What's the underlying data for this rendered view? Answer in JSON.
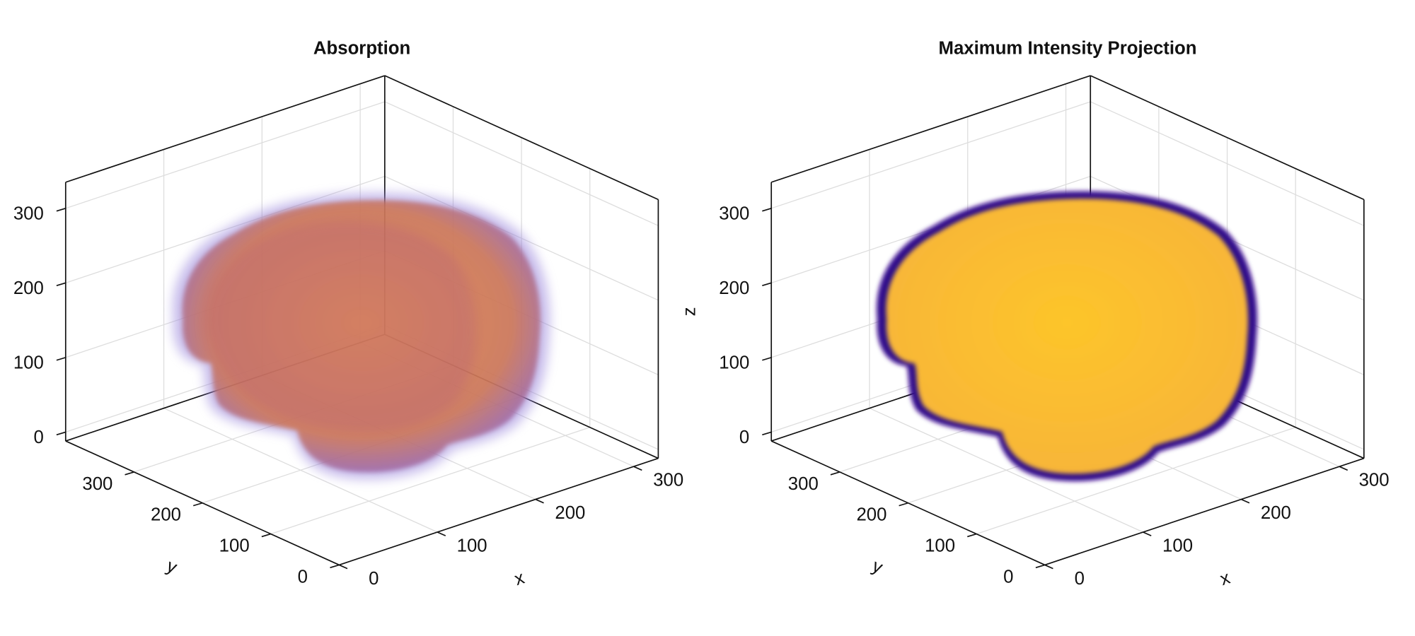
{
  "chart_data": [
    {
      "type": "volume",
      "title": "Absorption",
      "xlabel": "x",
      "ylabel": "y",
      "xlim": [
        0,
        325
      ],
      "ylim": [
        0,
        400
      ],
      "zlim": [
        -12,
        335
      ],
      "xticks": [
        0,
        100,
        200,
        300
      ],
      "yticks": [
        0,
        100,
        200,
        300
      ],
      "zticks": [
        0,
        100,
        200,
        300
      ],
      "grid": true
    },
    {
      "type": "volume",
      "title": "Maximum Intensity Projection",
      "xlabel": "x",
      "ylabel": "y",
      "zlabel": "z",
      "xlim": [
        0,
        325
      ],
      "ylim": [
        0,
        400
      ],
      "zlim": [
        -12,
        335
      ],
      "xticks": [
        0,
        100,
        200,
        300
      ],
      "yticks": [
        0,
        100,
        200,
        300
      ],
      "zticks": [
        0,
        100,
        200,
        300
      ],
      "grid": true
    }
  ]
}
